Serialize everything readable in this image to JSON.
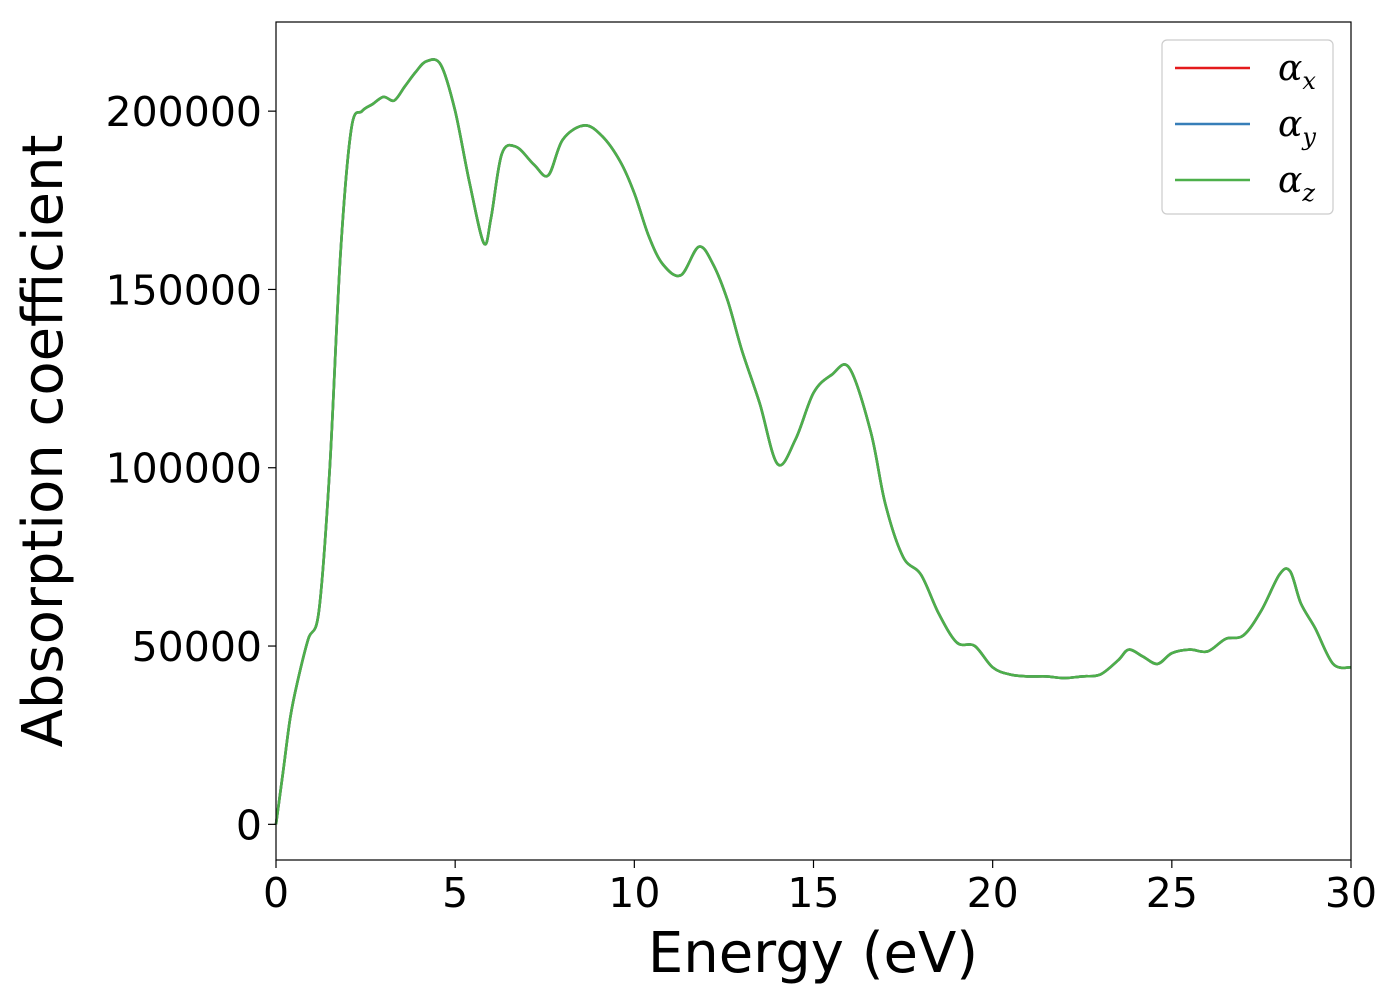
{
  "chart_data": {
    "type": "line",
    "xlabel": "Energy (eV)",
    "ylabel": "Absorption coefficient",
    "xlim": [
      0,
      30
    ],
    "ylim": [
      -10000,
      225000
    ],
    "x_ticks": [
      "0",
      "5",
      "10",
      "15",
      "20",
      "25",
      "30"
    ],
    "y_ticks": [
      "0",
      "50000",
      "100000",
      "150000",
      "200000"
    ],
    "grid": false,
    "legend_position": "top-right",
    "x": [
      0,
      0.2,
      0.4,
      0.6,
      0.9,
      1.2,
      1.5,
      1.8,
      2.1,
      2.4,
      2.7,
      3.0,
      3.3,
      3.6,
      3.9,
      4.2,
      4.6,
      5.0,
      5.4,
      5.8,
      6.0,
      6.3,
      6.7,
      7.2,
      7.6,
      8.0,
      8.6,
      9.1,
      9.6,
      10.0,
      10.4,
      10.8,
      11.3,
      11.8,
      12.2,
      12.6,
      13.0,
      13.5,
      14.0,
      14.5,
      15.0,
      15.5,
      16.0,
      16.6,
      17.0,
      17.5,
      18.0,
      18.5,
      19.0,
      19.5,
      20.0,
      20.5,
      21.0,
      21.5,
      22.0,
      22.5,
      23.0,
      23.5,
      23.8,
      24.2,
      24.6,
      25.0,
      25.5,
      26.0,
      26.5,
      27.0,
      27.5,
      28.0,
      28.3,
      28.6,
      29.0,
      29.5,
      30.0
    ],
    "series": [
      {
        "name": "α",
        "sub": "x",
        "color": "#e41a1c",
        "values": [
          0,
          15000,
          30000,
          40000,
          52000,
          60000,
          100000,
          160000,
          195000,
          200000,
          202000,
          204000,
          203000,
          207000,
          211000,
          214000,
          213000,
          200000,
          180000,
          163000,
          170000,
          188000,
          190000,
          185000,
          182000,
          192000,
          196000,
          193000,
          186000,
          177000,
          165000,
          157000,
          154000,
          162000,
          157000,
          147000,
          133000,
          118000,
          101000,
          108000,
          121000,
          126000,
          128000,
          110000,
          90000,
          75000,
          70000,
          59000,
          51000,
          50000,
          44000,
          42000,
          41500,
          41500,
          41000,
          41500,
          42000,
          46000,
          49000,
          47000,
          45000,
          48000,
          49000,
          48500,
          52000,
          53000,
          60000,
          70000,
          71000,
          62000,
          55000,
          45000,
          44000
        ]
      },
      {
        "name": "α",
        "sub": "y",
        "color": "#377eb8",
        "values": [
          0,
          15000,
          30000,
          40000,
          52000,
          60000,
          100000,
          160000,
          195000,
          200000,
          202000,
          204000,
          203000,
          207000,
          211000,
          214000,
          213000,
          200000,
          180000,
          163000,
          170000,
          188000,
          190000,
          185000,
          182000,
          192000,
          196000,
          193000,
          186000,
          177000,
          165000,
          157000,
          154000,
          162000,
          157000,
          147000,
          133000,
          118000,
          101000,
          108000,
          121000,
          126000,
          128000,
          110000,
          90000,
          75000,
          70000,
          59000,
          51000,
          50000,
          44000,
          42000,
          41500,
          41500,
          41000,
          41500,
          42000,
          46000,
          49000,
          47000,
          45000,
          48000,
          49000,
          48500,
          52000,
          53000,
          60000,
          70000,
          71000,
          62000,
          55000,
          45000,
          44000
        ]
      },
      {
        "name": "α",
        "sub": "z",
        "color": "#4daf4a",
        "values": [
          0,
          15000,
          30000,
          40000,
          52000,
          60000,
          100000,
          160000,
          195000,
          200000,
          202000,
          204000,
          203000,
          207000,
          211000,
          214000,
          213000,
          200000,
          180000,
          163000,
          170000,
          188000,
          190000,
          185000,
          182000,
          192000,
          196000,
          193000,
          186000,
          177000,
          165000,
          157000,
          154000,
          162000,
          157000,
          147000,
          133000,
          118000,
          101000,
          108000,
          121000,
          126000,
          128000,
          110000,
          90000,
          75000,
          70000,
          59000,
          51000,
          50000,
          44000,
          42000,
          41500,
          41500,
          41000,
          41500,
          42000,
          46000,
          49000,
          47000,
          45000,
          48000,
          49000,
          48500,
          52000,
          53000,
          60000,
          70000,
          71000,
          62000,
          55000,
          45000,
          44000
        ]
      }
    ]
  }
}
